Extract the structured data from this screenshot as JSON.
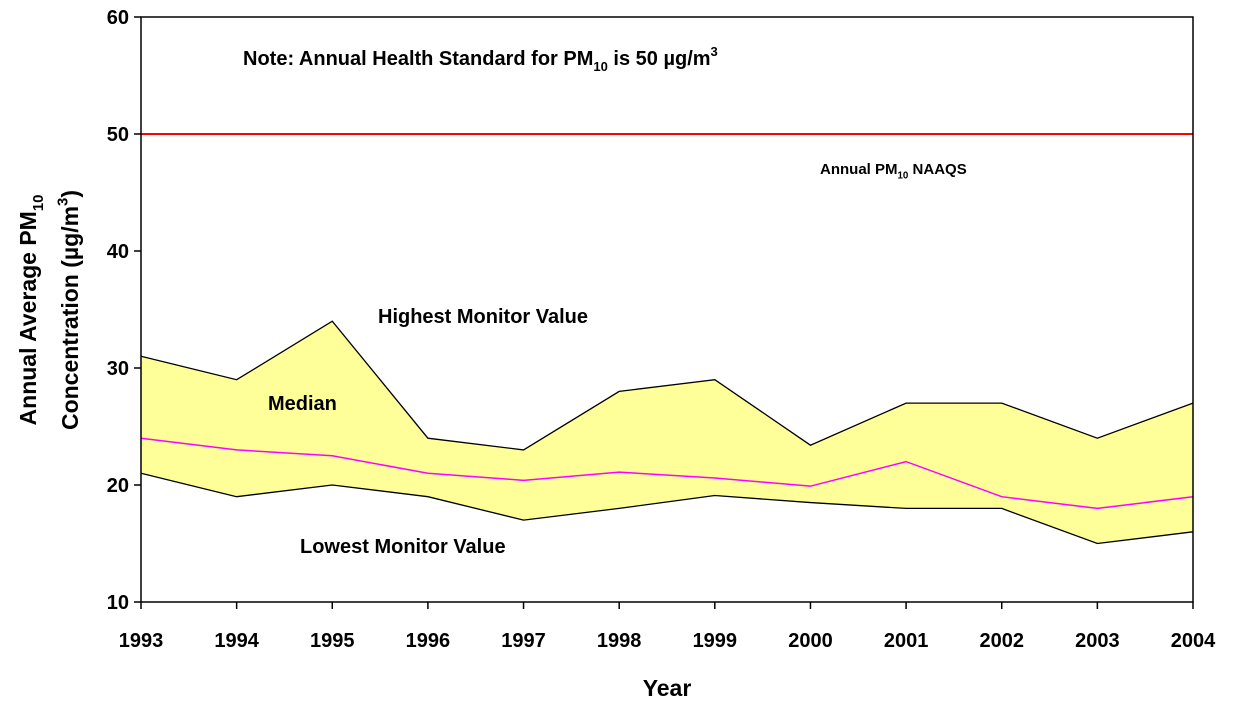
{
  "chart_data": {
    "type": "line",
    "note": [
      "Note: Annual Health Standard for PM",
      "10",
      " is 50 µg/m",
      "3"
    ],
    "x_label": "Year",
    "y_label": [
      [
        "Annual Average PM",
        "10"
      ],
      [
        "Concentration (µg/m",
        "3",
        ")"
      ]
    ],
    "x": [
      1993,
      1994,
      1995,
      1996,
      1997,
      1998,
      1999,
      2000,
      2001,
      2002,
      2003,
      2004
    ],
    "xlim": [
      1993,
      2004
    ],
    "xticks": [
      1993,
      1994,
      1995,
      1996,
      1997,
      1998,
      1999,
      2000,
      2001,
      2002,
      2003,
      2004
    ],
    "ylim": [
      10,
      60
    ],
    "yticks": [
      10,
      20,
      30,
      40,
      50,
      60
    ],
    "band_color": "#ffff99",
    "series": [
      {
        "name": "Highest Monitor Value",
        "color": "#000000",
        "values": [
          31,
          29,
          34,
          24,
          23,
          28,
          29,
          23.4,
          27,
          27,
          24,
          27
        ]
      },
      {
        "name": "Median",
        "color": "#ff00ff",
        "values": [
          24,
          23,
          22.5,
          21,
          20.4,
          21.1,
          20.6,
          19.9,
          22,
          19,
          18,
          19
        ]
      },
      {
        "name": "Lowest Monitor Value",
        "color": "#000000",
        "values": [
          21,
          19,
          20,
          19,
          17,
          18,
          19.1,
          18.5,
          18,
          18,
          15,
          16
        ]
      }
    ],
    "reference": {
      "value": 50,
      "color": "#ff0000",
      "label": [
        "Annual PM",
        "10",
        " NAAQS"
      ]
    }
  }
}
